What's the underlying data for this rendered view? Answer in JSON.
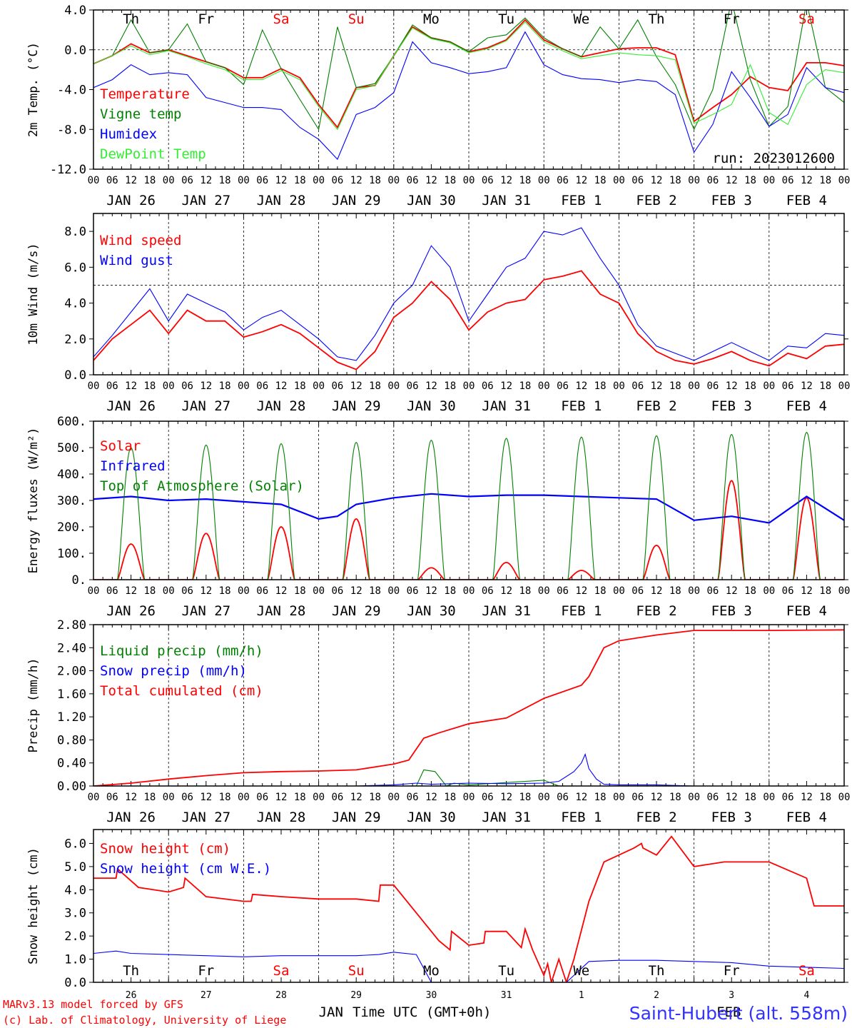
{
  "run_label": "run: 2023012600",
  "footer": {
    "model": "MARv3.13 model forced by GFS",
    "lab": "(c) Lab. of Climatology, University of Liege",
    "station": "Saint-Hubert (alt. 558m)",
    "xlabel": "Time UTC (GMT+0h)",
    "month_jan": "JAN",
    "month_feb": "FEB"
  },
  "hours": [
    "00",
    "06",
    "12",
    "18"
  ],
  "dates": [
    "JAN 26",
    "JAN 27",
    "JAN 28",
    "JAN 29",
    "JAN 30",
    "JAN 31",
    "FEB  1",
    "FEB  2",
    "FEB  3",
    "FEB  4"
  ],
  "daynums": [
    "26",
    "27",
    "28",
    "29",
    "30",
    "31",
    "1",
    "2",
    "3",
    "4"
  ],
  "weekdays": [
    "Th",
    "Fr",
    "Sa",
    "Su",
    "Mo",
    "Tu",
    "We",
    "Th",
    "Fr",
    "Sa"
  ],
  "weekday_colors": [
    "#000000",
    "#000000",
    "#ff0000",
    "#ff0000",
    "#000000",
    "#000000",
    "#000000",
    "#000000",
    "#000000",
    "#ff0000"
  ],
  "colors": {
    "red": "#ff0000",
    "green": "#008000",
    "blue": "#0000ff",
    "lightgreen": "#33ee33"
  },
  "chart_data": [
    {
      "type": "line",
      "ylabel": "2m Temp. (°C)",
      "ylim": [
        -12,
        4
      ],
      "yticks": [
        "4.0",
        "0.0",
        "-4.0",
        "-8.0",
        "-12.0"
      ],
      "ytick_values": [
        4,
        0,
        -4,
        -8,
        -12
      ],
      "dashed_y": 0,
      "x_days": [
        0,
        0.25,
        0.5,
        0.75,
        1,
        1.25,
        1.5,
        1.75,
        2,
        2.25,
        2.5,
        2.75,
        3,
        3.25,
        3.5,
        3.75,
        4,
        4.25,
        4.5,
        4.75,
        5,
        5.25,
        5.5,
        5.75,
        6,
        6.25,
        6.5,
        6.75,
        7,
        7.25,
        7.5,
        7.75,
        8,
        8.25,
        8.5,
        8.75,
        9,
        9.25,
        9.5,
        9.75,
        10
      ],
      "series": [
        {
          "name": "Temperature",
          "color": "#ff0000",
          "values": [
            -1.4,
            -0.6,
            0.6,
            -0.3,
            0.0,
            -0.6,
            -1.2,
            -1.8,
            -2.8,
            -2.8,
            -1.9,
            -2.8,
            -5.5,
            -7.8,
            -3.8,
            -3.6,
            -0.6,
            2.3,
            1.2,
            0.8,
            -0.2,
            0.2,
            1.0,
            3.0,
            1.0,
            0.1,
            -0.7,
            -0.3,
            0.1,
            0.2,
            0.2,
            -0.5,
            -7.2,
            -5.8,
            -4.5,
            -2.7,
            -3.8,
            -4.1,
            -1.3,
            -1.3,
            -1.6
          ]
        },
        {
          "name": "Vigne temp",
          "color": "#008000",
          "values": [
            -1.4,
            -0.6,
            3.0,
            -0.3,
            0.0,
            2.6,
            -1.2,
            -1.8,
            -3.5,
            2.0,
            -1.9,
            -5.0,
            -8.0,
            2.3,
            -3.8,
            -3.4,
            -0.6,
            2.5,
            1.2,
            0.8,
            -0.2,
            1.2,
            1.5,
            3.2,
            1.2,
            0.1,
            -0.7,
            2.3,
            0.1,
            3.0,
            -0.7,
            -3.5,
            -8.0,
            -4.0,
            5.0,
            -3.0,
            -7.7,
            -5.7,
            4.8,
            -3.8,
            -5.3
          ]
        },
        {
          "name": "Humidex",
          "color": "#0000ff",
          "values": [
            -3.8,
            -3.0,
            -1.5,
            -2.5,
            -2.3,
            -2.5,
            -4.8,
            -5.3,
            -5.8,
            -5.8,
            -6.0,
            -7.8,
            -9.0,
            -11.0,
            -6.5,
            -5.8,
            -4.3,
            0.8,
            -1.3,
            -1.8,
            -2.4,
            -2.2,
            -1.8,
            1.8,
            -1.5,
            -2.5,
            -2.9,
            -3.0,
            -3.3,
            -3.0,
            -3.2,
            -4.5,
            -10.3,
            -7.5,
            -2.2,
            -4.8,
            -7.7,
            -6.5,
            -1.8,
            -3.8,
            -4.3
          ]
        },
        {
          "name": "DewPoint Temp",
          "color": "#33ee33",
          "values": [
            -1.4,
            -0.6,
            0.4,
            -0.5,
            -0.1,
            -0.7,
            -1.4,
            -2.0,
            -3.0,
            -3.0,
            -2.1,
            -3.0,
            -5.7,
            -8.0,
            -4.0,
            -3.6,
            -0.6,
            2.2,
            1.1,
            0.7,
            -0.3,
            0.1,
            0.9,
            2.8,
            0.8,
            -0.1,
            -0.9,
            -0.6,
            -0.3,
            -0.5,
            -0.6,
            -1.0,
            -7.4,
            -6.5,
            -5.5,
            -1.5,
            -6.3,
            -7.5,
            -3.5,
            -2.0,
            -2.3
          ]
        }
      ]
    },
    {
      "type": "line",
      "ylabel": "10m Wind (m/s)",
      "ylim": [
        0,
        9
      ],
      "yticks": [
        "8.0",
        "6.0",
        "4.0",
        "2.0",
        "0.0"
      ],
      "ytick_values": [
        8,
        6,
        4,
        2,
        0
      ],
      "dashed_y": 5,
      "x_days": [
        0,
        0.25,
        0.5,
        0.75,
        1,
        1.25,
        1.5,
        1.75,
        2,
        2.25,
        2.5,
        2.75,
        3,
        3.25,
        3.5,
        3.75,
        4,
        4.25,
        4.5,
        4.75,
        5,
        5.25,
        5.5,
        5.75,
        6,
        6.25,
        6.5,
        6.75,
        7,
        7.25,
        7.5,
        7.75,
        8,
        8.25,
        8.5,
        8.75,
        9,
        9.25,
        9.5,
        9.75,
        10
      ],
      "series": [
        {
          "name": "Wind speed",
          "color": "#ff0000",
          "values": [
            0.8,
            2.0,
            2.8,
            3.6,
            2.3,
            3.6,
            3.0,
            3.0,
            2.1,
            2.4,
            2.8,
            2.3,
            1.5,
            0.7,
            0.3,
            1.3,
            3.2,
            4.0,
            5.2,
            4.2,
            2.5,
            3.5,
            4.0,
            4.2,
            5.3,
            5.5,
            5.8,
            4.5,
            4.0,
            2.3,
            1.3,
            0.8,
            0.6,
            0.9,
            1.3,
            0.8,
            0.5,
            1.2,
            0.9,
            1.6,
            1.7
          ]
        },
        {
          "name": "Wind gust",
          "color": "#0000ff",
          "values": [
            1.0,
            2.2,
            3.5,
            4.8,
            3.0,
            4.5,
            4.0,
            3.5,
            2.5,
            3.2,
            3.6,
            2.8,
            2.0,
            1.0,
            0.8,
            2.2,
            4.0,
            5.0,
            7.2,
            6.0,
            3.0,
            4.5,
            6.0,
            6.5,
            8.0,
            7.8,
            8.2,
            6.5,
            5.0,
            2.8,
            1.6,
            1.2,
            0.8,
            1.3,
            1.8,
            1.3,
            0.8,
            1.6,
            1.5,
            2.3,
            2.2
          ]
        }
      ]
    },
    {
      "type": "line",
      "ylabel": "Energy fluxes (W/m²)",
      "ylim": [
        0,
        600
      ],
      "yticks": [
        "600.",
        "500.",
        "400.",
        "300.",
        "200.",
        "100.",
        "0."
      ],
      "ytick_values": [
        600,
        500,
        400,
        300,
        200,
        100,
        0
      ],
      "dashed_y": null,
      "days": 10,
      "sunrise": 0.32,
      "sunset": 0.68,
      "series": [
        {
          "name": "Solar",
          "color": "#ff0000",
          "daily_peak": [
            135,
            175,
            200,
            230,
            45,
            65,
            35,
            130,
            375,
            310
          ]
        },
        {
          "name": "Infrared",
          "color": "#0000ff",
          "x_days": [
            0,
            0.5,
            1,
            1.5,
            2,
            2.5,
            3,
            3.25,
            3.5,
            4,
            4.5,
            5,
            5.5,
            6,
            6.5,
            7,
            7.5,
            8,
            8.5,
            9,
            9.5,
            10
          ],
          "values": [
            305,
            315,
            300,
            305,
            295,
            285,
            230,
            240,
            285,
            310,
            325,
            315,
            320,
            320,
            315,
            310,
            305,
            225,
            240,
            215,
            315,
            225
          ]
        },
        {
          "name": "Top of Atmosphere (Solar)",
          "color": "#008000",
          "daily_peak": [
            500,
            510,
            515,
            520,
            528,
            535,
            540,
            545,
            550,
            558
          ]
        }
      ]
    },
    {
      "type": "line",
      "ylabel": "Precip (mm/h)",
      "ylim": [
        0,
        2.8
      ],
      "yticks": [
        "2.80",
        "2.40",
        "2.00",
        "1.60",
        "1.20",
        "0.80",
        "0.40",
        "0.00"
      ],
      "ytick_values": [
        2.8,
        2.4,
        2.0,
        1.6,
        1.2,
        0.8,
        0.4,
        0.0
      ],
      "dashed_y": null,
      "series": [
        {
          "name": "Liquid precip (mm/h)",
          "color": "#008000",
          "x_days": [
            0,
            4.3,
            4.4,
            4.55,
            4.7,
            4.8,
            5,
            6,
            6.2,
            6.5,
            10
          ],
          "values": [
            0,
            0,
            0.28,
            0.25,
            0,
            0.05,
            0.02,
            0.1,
            0,
            0,
            0
          ]
        },
        {
          "name": "Snow precip (mm/h)",
          "color": "#0000ff",
          "x_days": [
            0,
            3.5,
            4,
            4.3,
            4.5,
            5,
            5.5,
            6,
            6.2,
            6.4,
            6.5,
            6.55,
            6.6,
            6.7,
            6.8,
            7,
            7.5,
            8,
            10
          ],
          "values": [
            0,
            0,
            0.02,
            0.05,
            0.03,
            0.05,
            0.04,
            0.05,
            0.08,
            0.25,
            0.4,
            0.55,
            0.3,
            0.12,
            0.03,
            0.02,
            0.02,
            0,
            0
          ]
        },
        {
          "name": "Total cumulated (cm)",
          "color": "#ff0000",
          "x_days": [
            0,
            0.5,
            1,
            1.5,
            2,
            2.5,
            3,
            3.5,
            4,
            4.2,
            4.4,
            4.6,
            5,
            5.5,
            6,
            6.5,
            6.6,
            6.8,
            7,
            7.5,
            8,
            8.5,
            9,
            10
          ],
          "values": [
            0,
            0.05,
            0.12,
            0.18,
            0.23,
            0.25,
            0.26,
            0.28,
            0.38,
            0.45,
            0.83,
            0.92,
            1.08,
            1.18,
            1.52,
            1.75,
            1.9,
            2.4,
            2.52,
            2.62,
            2.7,
            2.7,
            2.7,
            2.71
          ]
        }
      ]
    },
    {
      "type": "line",
      "ylabel": "Snow height (cm)",
      "ylim": [
        0,
        6.6
      ],
      "yticks": [
        "6.0",
        "5.0",
        "4.0",
        "3.0",
        "2.0",
        "1.0",
        "0.0"
      ],
      "ytick_values": [
        6,
        5,
        4,
        3,
        2,
        1,
        0
      ],
      "dashed_y": null,
      "series": [
        {
          "name": "Snow height (cm)",
          "color": "#ff0000",
          "x_days": [
            0,
            0.3,
            0.32,
            0.6,
            1,
            1.2,
            1.22,
            1.5,
            2,
            2.1,
            2.12,
            2.5,
            3,
            3.5,
            3.8,
            3.82,
            4,
            4.3,
            4.6,
            4.75,
            4.77,
            5,
            5.2,
            5.22,
            5.5,
            5.7,
            5.75,
            5.85,
            6,
            6.05,
            6.1,
            6.2,
            6.3,
            6.4,
            6.6,
            6.8,
            7,
            7.2,
            7.3,
            7.32,
            7.5,
            7.7,
            8,
            8.4,
            8.5,
            9,
            9.5,
            9.6,
            9.8,
            10
          ],
          "values": [
            4.5,
            4.5,
            4.9,
            4.1,
            3.9,
            4.1,
            4.5,
            3.7,
            3.5,
            3.5,
            3.8,
            3.7,
            3.6,
            3.6,
            3.5,
            4.2,
            4.2,
            3.0,
            1.8,
            1.4,
            2.2,
            1.6,
            1.7,
            2.2,
            2.2,
            1.5,
            2.3,
            1.4,
            0.3,
            0.8,
            0.0,
            1.0,
            0.0,
            1.0,
            3.5,
            5.2,
            5.5,
            5.8,
            6.0,
            5.8,
            5.5,
            6.3,
            5.0,
            5.2,
            5.2,
            5.2,
            4.5,
            3.3,
            3.3,
            3.3
          ]
        },
        {
          "name": "Snow height (cm W.E.)",
          "color": "#0000ff",
          "x_days": [
            0,
            0.3,
            0.5,
            1,
            1.5,
            2,
            2.5,
            3,
            3.5,
            3.8,
            4,
            4.3,
            4.5,
            5,
            5.5,
            6,
            6.3,
            6.6,
            7,
            7.5,
            8,
            8.5,
            9,
            9.5,
            10
          ],
          "values": [
            1.25,
            1.35,
            1.25,
            1.2,
            1.15,
            1.1,
            1.15,
            1.15,
            1.15,
            1.2,
            1.3,
            1.2,
            0.0,
            0.0,
            0.0,
            0.0,
            0.0,
            0.9,
            0.95,
            0.95,
            0.9,
            0.85,
            0.7,
            0.65,
            0.6
          ]
        }
      ]
    }
  ]
}
